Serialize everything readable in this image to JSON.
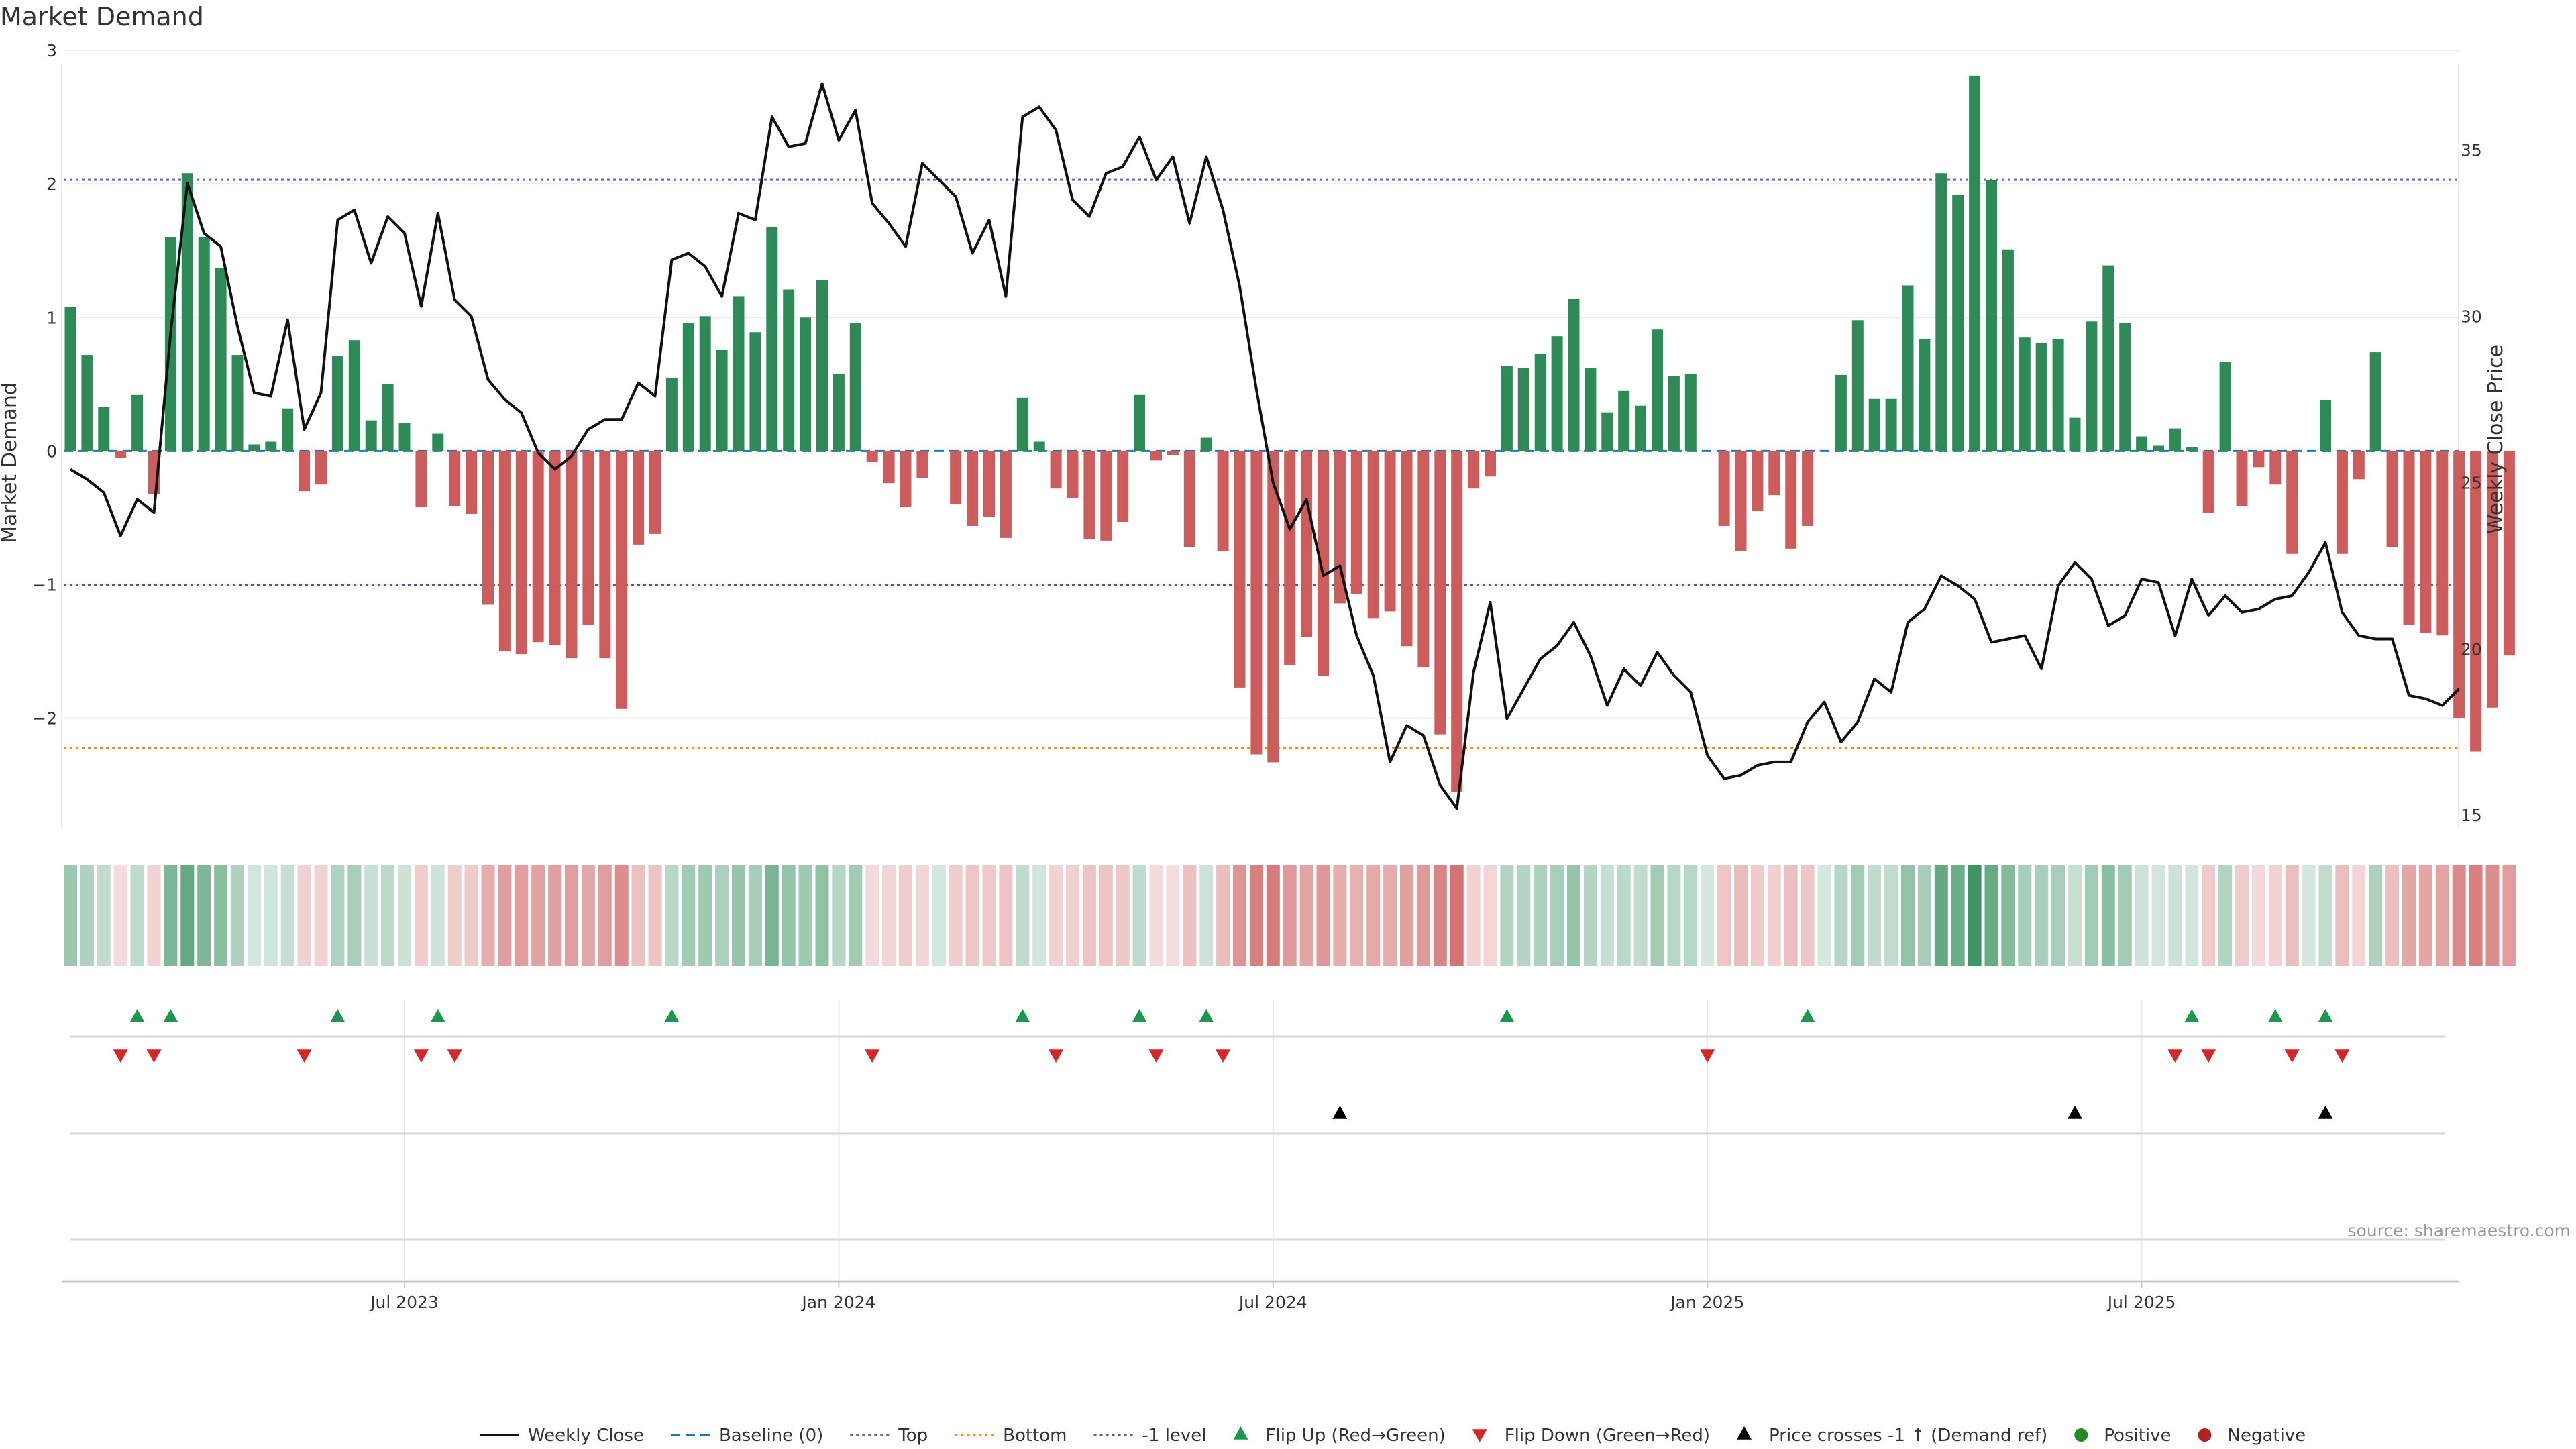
{
  "colors": {
    "green": "#2e8b57",
    "red": "#cd5c5c",
    "price_line": "#111111",
    "top_line": "#6a5acd",
    "bottom_line": "#ff8c00",
    "neg1_line": "#5a5a8a",
    "baseline": "#1f77b4",
    "flip_up": "#1a9850",
    "flip_down": "#d62728",
    "cross": "#000000",
    "positive": "#228b22",
    "negative": "#b22222",
    "grid": "#ebebeb"
  },
  "chart_data": {
    "type": "bar+line",
    "title": "Market Demand",
    "ylabel_left": "Market Demand",
    "ylabel_right": "Weekly Close Price",
    "ylim_left": [
      -2.85,
      3.0
    ],
    "ylim_right": [
      14.5,
      38.0
    ],
    "yticks_left": [
      3,
      2,
      1,
      0,
      -1,
      -2
    ],
    "ytick_labels_left": [
      "3",
      "2",
      "1",
      "0",
      "−1",
      "−2"
    ],
    "yticks_right": [
      35,
      30,
      25,
      20,
      15
    ],
    "ytick_labels_right": [
      "35",
      "30",
      "25",
      "20",
      "15"
    ],
    "x_ticks": [
      {
        "week": 20,
        "label": "Jul 2023"
      },
      {
        "week": 46,
        "label": "Jan 2024"
      },
      {
        "week": 72,
        "label": "Jul 2024"
      },
      {
        "week": 98,
        "label": "Jan 2025"
      },
      {
        "week": 124,
        "label": "Jul 2025"
      }
    ],
    "reference_lines": {
      "top": 2.03,
      "bottom": -2.22,
      "minus_one": -1.0
    },
    "demand": [
      1.08,
      0.72,
      0.33,
      -0.05,
      0.42,
      -0.32,
      1.6,
      2.08,
      1.6,
      1.37,
      0.72,
      0.05,
      0.07,
      0.32,
      -0.3,
      -0.25,
      0.71,
      0.83,
      0.23,
      0.5,
      0.21,
      -0.42,
      0.13,
      -0.41,
      -0.47,
      -1.15,
      -1.5,
      -1.52,
      -1.43,
      -1.45,
      -1.55,
      -1.3,
      -1.55,
      -1.93,
      -0.7,
      -0.62,
      0.55,
      0.96,
      1.01,
      0.76,
      1.16,
      0.89,
      1.68,
      1.21,
      1.0,
      1.28,
      0.58,
      0.96,
      -0.08,
      -0.24,
      -0.42,
      -0.2,
      0.0,
      -0.4,
      -0.56,
      -0.49,
      -0.65,
      0.4,
      0.07,
      -0.28,
      -0.35,
      -0.66,
      -0.67,
      -0.53,
      0.42,
      -0.07,
      -0.03,
      -0.72,
      0.1,
      -0.75,
      -1.77,
      -2.27,
      -2.33,
      -1.6,
      -1.39,
      -1.68,
      -1.14,
      -1.07,
      -1.25,
      -1.2,
      -1.46,
      -1.62,
      -2.12,
      -2.55,
      -0.28,
      -0.19,
      0.64,
      0.62,
      0.73,
      0.86,
      1.14,
      0.62,
      0.29,
      0.45,
      0.34,
      0.91,
      0.56,
      0.58,
      0.0,
      -0.56,
      -0.75,
      -0.45,
      -0.33,
      -0.73,
      -0.56,
      0.0,
      0.57,
      0.98,
      0.39,
      0.39,
      1.24,
      0.84,
      2.08,
      1.92,
      2.81,
      2.03,
      1.51,
      0.85,
      0.81,
      0.84,
      0.25,
      0.97,
      1.39,
      0.96,
      0.11,
      0.04,
      0.17,
      0.03,
      -0.46,
      0.67,
      -0.41,
      -0.12,
      -0.25,
      -0.77,
      0.0,
      0.38,
      -0.77,
      -0.21,
      0.74,
      -0.72,
      -1.3,
      -1.36,
      -1.38,
      -2.0,
      -2.25,
      -1.92,
      -1.53
    ],
    "weekly_close": [
      25.4,
      25.1,
      24.7,
      23.4,
      24.5,
      24.1,
      29.5,
      34.0,
      32.5,
      32.1,
      29.7,
      27.7,
      27.6,
      29.9,
      26.6,
      27.7,
      32.9,
      33.2,
      31.6,
      33.0,
      32.5,
      30.3,
      33.1,
      30.5,
      30.0,
      28.1,
      27.5,
      27.1,
      25.9,
      25.4,
      25.8,
      26.6,
      26.9,
      26.9,
      28.0,
      27.6,
      31.7,
      31.9,
      31.5,
      30.6,
      33.1,
      32.9,
      36.0,
      35.1,
      35.2,
      37.0,
      35.3,
      36.2,
      33.4,
      32.8,
      32.1,
      34.6,
      34.1,
      33.6,
      31.9,
      32.9,
      30.6,
      36.0,
      36.3,
      35.6,
      33.5,
      33.0,
      34.3,
      34.5,
      35.4,
      34.1,
      34.8,
      32.8,
      34.8,
      33.2,
      30.9,
      27.8,
      25.0,
      23.6,
      24.5,
      22.2,
      22.5,
      20.4,
      19.2,
      16.6,
      17.7,
      17.4,
      15.9,
      15.2,
      19.3,
      21.4,
      17.9,
      18.8,
      19.7,
      20.1,
      20.8,
      19.8,
      18.3,
      19.4,
      18.9,
      19.9,
      19.2,
      18.7,
      16.8,
      16.1,
      16.2,
      16.5,
      16.6,
      16.6,
      17.8,
      18.4,
      17.2,
      17.8,
      19.1,
      18.7,
      20.8,
      21.2,
      22.2,
      21.9,
      21.5,
      20.2,
      20.3,
      20.4,
      19.4,
      21.9,
      22.6,
      22.1,
      20.7,
      21.0,
      22.1,
      22.0,
      20.4,
      22.1,
      21.0,
      21.6,
      21.1,
      21.2,
      21.5,
      21.6,
      22.3,
      23.2,
      21.1,
      20.4,
      20.3,
      20.3,
      18.6,
      18.5,
      18.3,
      18.8
    ],
    "flip_up_weeks": [
      4,
      6,
      16,
      22,
      36,
      57,
      64,
      68,
      86,
      104,
      127,
      132,
      135
    ],
    "flip_down_weeks": [
      3,
      5,
      14,
      21,
      23,
      48,
      59,
      65,
      69,
      98,
      126,
      128,
      133,
      136
    ],
    "price_cross_weeks": [
      76,
      120,
      135
    ]
  },
  "legend": {
    "items": [
      {
        "label": "Weekly Close",
        "kind": "line-solid",
        "color_key": "price_line"
      },
      {
        "label": "Baseline (0)",
        "kind": "line-dash",
        "color_key": "baseline"
      },
      {
        "label": "Top",
        "kind": "line-dot",
        "color_key": "top_line"
      },
      {
        "label": "Bottom",
        "kind": "line-dot",
        "color_key": "bottom_line"
      },
      {
        "label": "-1 level",
        "kind": "line-dot",
        "color_key": "neg1_line"
      },
      {
        "label": "Flip Up (Red→Green)",
        "kind": "tri-up",
        "color_key": "flip_up"
      },
      {
        "label": "Flip Down (Green→Red)",
        "kind": "tri-down",
        "color_key": "flip_down"
      },
      {
        "label": "Price crosses -1 ↑ (Demand ref)",
        "kind": "tri-up",
        "color_key": "cross"
      },
      {
        "label": "Positive",
        "kind": "dot",
        "color_key": "positive"
      },
      {
        "label": "Negative",
        "kind": "dot",
        "color_key": "negative"
      }
    ]
  },
  "source_text": "source: sharemaestro.com"
}
